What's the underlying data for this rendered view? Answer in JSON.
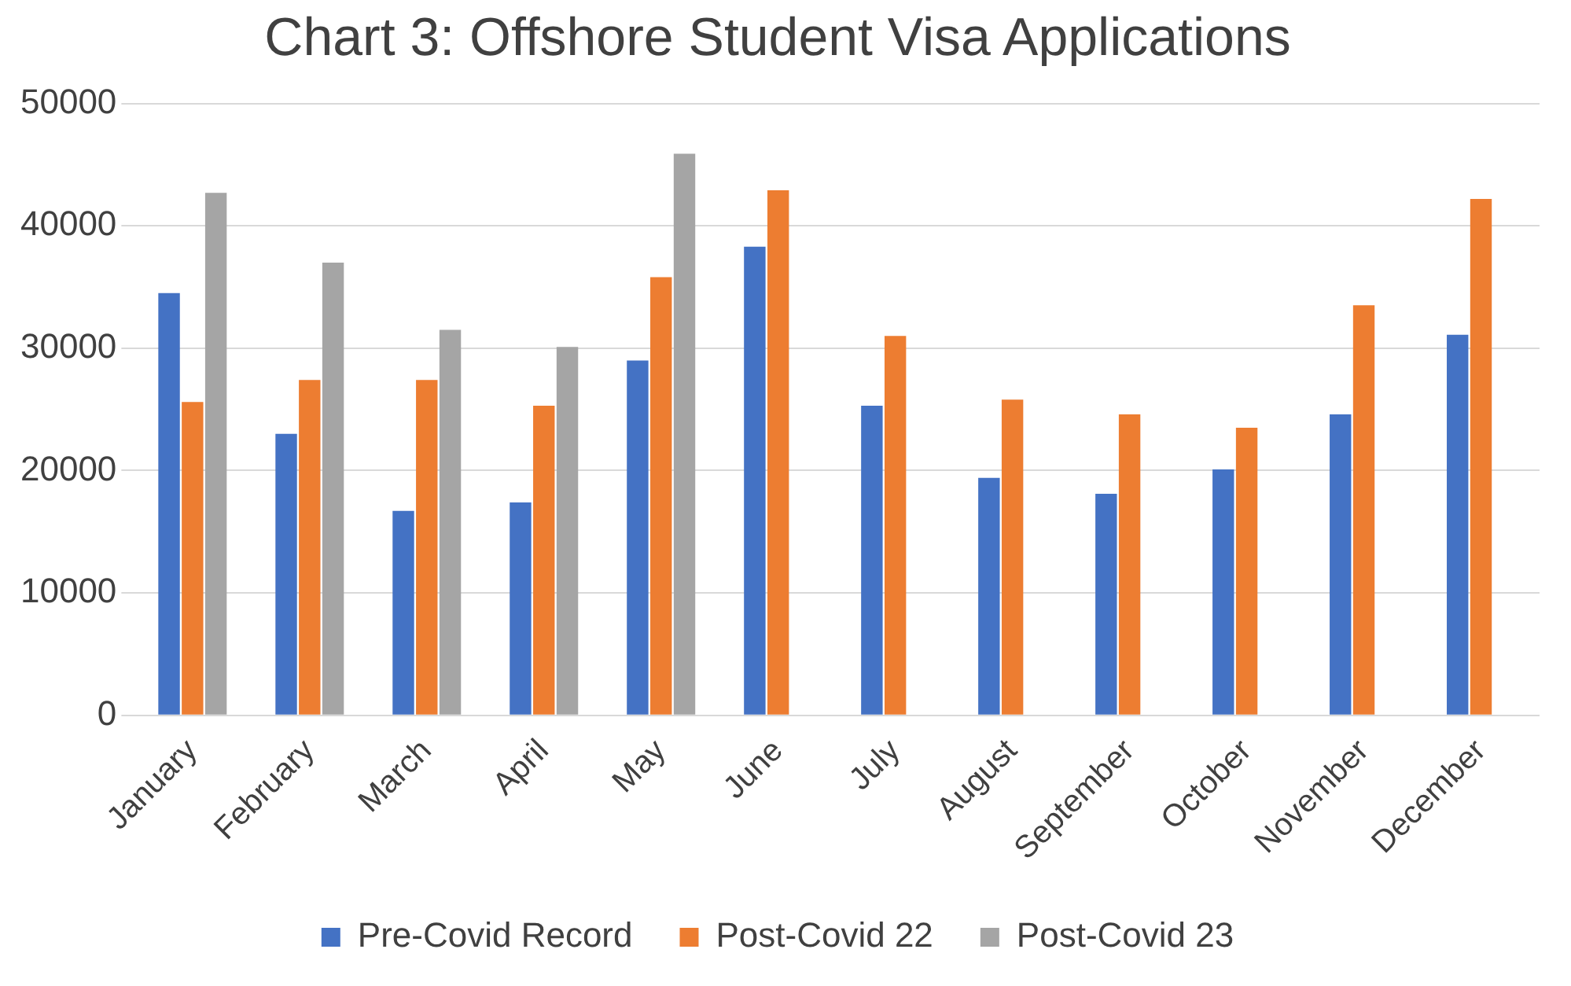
{
  "chart_data": {
    "type": "bar",
    "title": "Chart 3: Offshore Student Visa Applications",
    "categories": [
      "January",
      "February",
      "March",
      "April",
      "May",
      "June",
      "July",
      "August",
      "September",
      "October",
      "November",
      "December"
    ],
    "series": [
      {
        "name": "Pre-Covid Record",
        "color": "#4472c4",
        "values": [
          34500,
          23000,
          16700,
          17400,
          29000,
          38300,
          25300,
          19400,
          18100,
          20100,
          24600,
          31100
        ]
      },
      {
        "name": "Post-Covid 22",
        "color": "#ed7d31",
        "values": [
          25600,
          27400,
          27400,
          25300,
          35800,
          42900,
          31000,
          25800,
          24600,
          23500,
          33500,
          42200
        ]
      },
      {
        "name": "Post-Covid 23",
        "color": "#a5a5a5",
        "values": [
          42700,
          37000,
          31500,
          30100,
          45900,
          null,
          null,
          null,
          null,
          null,
          null,
          null
        ]
      }
    ],
    "ylim": [
      0,
      50000
    ],
    "yticks": [
      0,
      10000,
      20000,
      30000,
      40000,
      50000
    ],
    "grid": "y",
    "legend": "bottom"
  }
}
